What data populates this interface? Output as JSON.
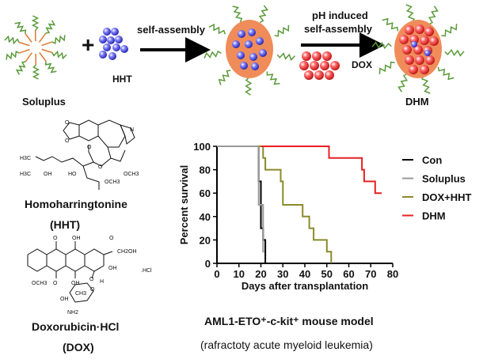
{
  "scheme": {
    "soluplus_label": "Soluplus",
    "plus": "+",
    "hht_label": "HHT",
    "arrow1_label": "self-assembly",
    "arrow2_label_line1": "pH induced",
    "arrow2_label_line2": "self-assembly",
    "dox_label": "DOX",
    "dhm_label": "DHM",
    "colors": {
      "chain": "#5a9a3a",
      "core": "#f08c5a",
      "hht": "#4848d8",
      "dox": "#e83030",
      "arrow": "#000000"
    }
  },
  "structures": {
    "hht": {
      "name": "Homoharringtonine",
      "abbr": "(HHT)",
      "atoms": [
        "H3C",
        "H3C",
        "OH",
        "HO",
        "OCH3",
        "OCH3",
        "O",
        "O",
        "O",
        "O",
        "N"
      ]
    },
    "dox": {
      "name": "Doxorubicin·HCl",
      "abbr": "(DOX)",
      "atoms": [
        "O",
        "OH",
        "O",
        "CH2OH",
        "OH",
        ".HCl",
        "OCH3",
        "O",
        "OH",
        "H",
        "O",
        "CH3",
        "OH",
        "NH2",
        "O"
      ]
    }
  },
  "chart_data": {
    "type": "line",
    "subtype": "kaplan-meier step",
    "xlabel": "Days after transplantation",
    "ylabel": "Percent survival",
    "xlim": [
      0,
      80
    ],
    "ylim": [
      0,
      100
    ],
    "xticks": [
      0,
      10,
      20,
      30,
      40,
      50,
      60,
      70,
      80
    ],
    "yticks": [
      0,
      20,
      40,
      60,
      80,
      100
    ],
    "grid": false,
    "legend": "right",
    "series": [
      {
        "name": "Con",
        "color": "#000000",
        "points": [
          [
            0,
            100
          ],
          [
            19,
            100
          ],
          [
            19,
            70
          ],
          [
            20,
            70
          ],
          [
            20,
            30
          ],
          [
            21,
            30
          ],
          [
            21,
            20
          ],
          [
            22,
            20
          ],
          [
            22,
            0
          ]
        ]
      },
      {
        "name": "Soluplus",
        "color": "#999999",
        "points": [
          [
            0,
            100
          ],
          [
            19,
            100
          ],
          [
            19,
            50
          ],
          [
            21,
            50
          ],
          [
            21,
            10
          ],
          [
            21.5,
            10
          ]
        ]
      },
      {
        "name": "DOX+HHT",
        "color": "#8c8a2a",
        "points": [
          [
            19,
            100
          ],
          [
            21,
            100
          ],
          [
            21,
            90
          ],
          [
            22,
            90
          ],
          [
            22,
            80
          ],
          [
            29,
            80
          ],
          [
            29,
            70
          ],
          [
            30,
            70
          ],
          [
            30,
            50
          ],
          [
            39,
            50
          ],
          [
            39,
            40
          ],
          [
            42,
            40
          ],
          [
            42,
            30
          ],
          [
            44,
            30
          ],
          [
            44,
            20
          ],
          [
            50,
            20
          ],
          [
            50,
            10
          ],
          [
            52,
            10
          ],
          [
            52,
            0
          ]
        ]
      },
      {
        "name": "DHM",
        "color": "#e82020",
        "points": [
          [
            20,
            100
          ],
          [
            51,
            100
          ],
          [
            51,
            90
          ],
          [
            66,
            90
          ],
          [
            66,
            80
          ],
          [
            67,
            80
          ],
          [
            67,
            70
          ],
          [
            72,
            70
          ],
          [
            72,
            60
          ],
          [
            75,
            60
          ]
        ]
      }
    ]
  },
  "caption": {
    "title": "AML1-ETO⁺-c-kit⁺ mouse model",
    "subtitle": "(rafractoty acute myeloid leukemia)"
  }
}
